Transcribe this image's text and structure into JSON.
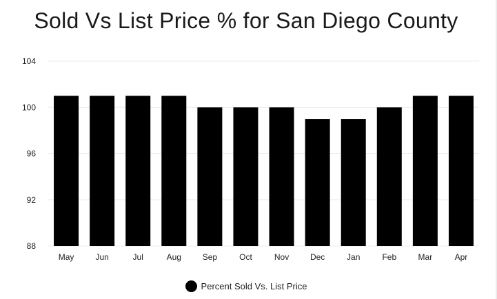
{
  "chart_data": {
    "type": "bar",
    "title": "Sold Vs List Price % for San Diego County",
    "xlabel": "",
    "ylabel": "",
    "categories": [
      "May",
      "Jun",
      "Jul",
      "Aug",
      "Sep",
      "Oct",
      "Nov",
      "Dec",
      "Jan",
      "Feb",
      "Mar",
      "Apr"
    ],
    "series": [
      {
        "name": "Percent Sold Vs. List Price",
        "values": [
          101,
          101,
          101,
          101,
          100,
          100,
          100,
          99,
          99,
          100,
          101,
          101
        ],
        "color": "#000000"
      }
    ],
    "ylim": [
      88,
      104
    ],
    "yticks": [
      88,
      92,
      96,
      100,
      104
    ],
    "grid": true,
    "legend": "bottom-center"
  }
}
